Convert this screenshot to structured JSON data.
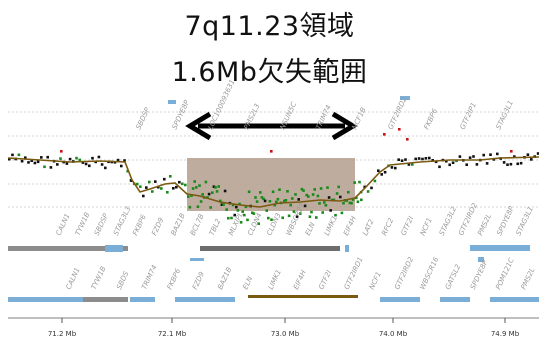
{
  "title": {
    "line1": "7q11.23領域",
    "line2": "1.6Mb欠失範囲"
  },
  "genes": {
    "row_upper": [
      "SBDSP",
      "SPDYE8P",
      "LOC100093631",
      "PMS2L3",
      "NSUN5C",
      "TRIM74",
      "NCF1B",
      "GTF2IRD2",
      "FKBP6",
      "GTF2IP1",
      "STAG3L1"
    ],
    "row_mid": [
      "CALN1",
      "TYW1B",
      "SBDSP",
      "STAG3L3",
      "FKBP6",
      "FZD9",
      "BAZ1B",
      "BCL7B",
      "TBL2",
      "MLXIPL",
      "CLDN4",
      "CLDN3",
      "WBSCR27",
      "ELN",
      "LIMK1",
      "EIF4H",
      "LAT2",
      "RFC2",
      "GTF2I",
      "NCF1",
      "STAG3L2",
      "GTF2IRD2",
      "PMS2L",
      "SPDYE8P",
      "STAG3L1"
    ],
    "row_lower": [
      "CALN1",
      "TYW1B",
      "SBDS",
      "TRIM74",
      "FKBP6",
      "FZD9",
      "BAZ1B",
      "ELN",
      "LIMK1",
      "EIF4H",
      "GTF2I",
      "GTF2IRD1",
      "NCF1",
      "GTF2IRD2",
      "WBSCR16",
      "GATSL2",
      "SPDYE8P",
      "POM121C",
      "PMS2L"
    ]
  },
  "axis": {
    "ticks": [
      "71.2 Mb",
      "72.1 Mb",
      "73.0 Mb",
      "74.0 Mb",
      "74.9 Mb"
    ]
  },
  "colors": {
    "deletion": "#b39e8e",
    "trend": "#7a5a10",
    "gain": "#cc1111",
    "loss": "#1a8a1a",
    "normal": "#111111",
    "segment_blue": "#7aaed6",
    "segment_gray": "#8c8c8c"
  }
}
